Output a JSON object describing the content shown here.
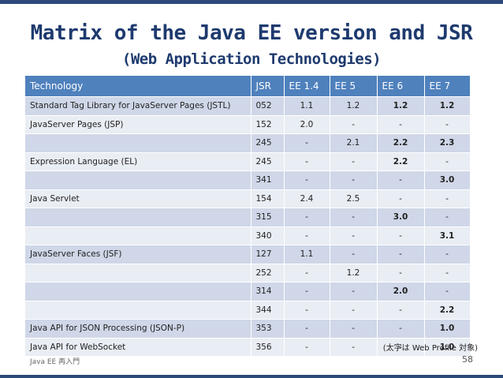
{
  "title": "Matrix of the Java EE version and JSR",
  "subtitle": "(Web Application Technologies)",
  "table": {
    "headers": [
      "Technology",
      "JSR",
      "EE 1.4",
      "EE 5",
      "EE 6",
      "EE 7"
    ],
    "rows": [
      {
        "tech": "Standard Tag Library for JavaServer Pages (JSTL)",
        "jsr": "052",
        "ee14": "1.1",
        "ee5": "1.2",
        "ee6": "1.2",
        "ee7": "1.2"
      },
      {
        "tech": "JavaServer Pages (JSP)",
        "jsr": "152",
        "ee14": "2.0",
        "ee5": "-",
        "ee6": "-",
        "ee7": "-"
      },
      {
        "tech": "",
        "jsr": "245",
        "ee14": "-",
        "ee5": "2.1",
        "ee6": "2.2",
        "ee7": "2.3"
      },
      {
        "tech": "Expression Language (EL)",
        "jsr": "245",
        "ee14": "-",
        "ee5": "-",
        "ee6": "2.2",
        "ee7": "-"
      },
      {
        "tech": "",
        "jsr": "341",
        "ee14": "-",
        "ee5": "-",
        "ee6": "-",
        "ee7": "3.0"
      },
      {
        "tech": "Java Servlet",
        "jsr": "154",
        "ee14": "2.4",
        "ee5": "2.5",
        "ee6": "-",
        "ee7": "-"
      },
      {
        "tech": "",
        "jsr": "315",
        "ee14": "-",
        "ee5": "-",
        "ee6": "3.0",
        "ee7": "-"
      },
      {
        "tech": "",
        "jsr": "340",
        "ee14": "-",
        "ee5": "-",
        "ee6": "-",
        "ee7": "3.1"
      },
      {
        "tech": "JavaServer Faces (JSF)",
        "jsr": "127",
        "ee14": "1.1",
        "ee5": "-",
        "ee6": "-",
        "ee7": "-"
      },
      {
        "tech": "",
        "jsr": "252",
        "ee14": "-",
        "ee5": "1.2",
        "ee6": "-",
        "ee7": "-"
      },
      {
        "tech": "",
        "jsr": "314",
        "ee14": "-",
        "ee5": "-",
        "ee6": "2.0",
        "ee7": "-"
      },
      {
        "tech": "",
        "jsr": "344",
        "ee14": "-",
        "ee5": "-",
        "ee6": "-",
        "ee7": "2.2"
      },
      {
        "tech": "Java API for JSON Processing (JSON-P)",
        "jsr": "353",
        "ee14": "-",
        "ee5": "-",
        "ee6": "-",
        "ee7": "1.0"
      },
      {
        "tech": "Java API for WebSocket",
        "jsr": "356",
        "ee14": "-",
        "ee5": "-",
        "ee6": "-",
        "ee7": "1.0"
      }
    ]
  },
  "note": "(太字は Web Profile 対象)",
  "footer": {
    "left": "Java EE 再入門",
    "page": "58"
  },
  "colors": {
    "header": "#4f81bd",
    "row_odd": "#cfd7e8",
    "row_even": "#e9edf4",
    "title": "#1e3a6e"
  }
}
